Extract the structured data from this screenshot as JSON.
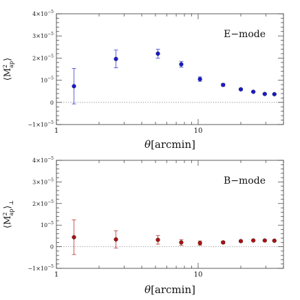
{
  "chart_data": [
    {
      "type": "scatter",
      "panel_label": "E−mode",
      "ylabel": {
        "prefix": "⟨M",
        "sup": "2",
        "sub": "ap",
        "suffix": "⟩",
        "extra": ""
      },
      "xlabel": {
        "theta": "θ",
        "unit": "[arcmin]"
      },
      "xscale": "log",
      "xlim": [
        1,
        40
      ],
      "ylim": [
        -1e-05,
        4e-05
      ],
      "yticks": [
        {
          "value": -1e-05,
          "mant": "−1×10",
          "exp": "−5"
        },
        {
          "value": 0,
          "mant": "0",
          "exp": ""
        },
        {
          "value": 1e-05,
          "mant": "10",
          "exp": "−5"
        },
        {
          "value": 2e-05,
          "mant": "2×10",
          "exp": "−5"
        },
        {
          "value": 3e-05,
          "mant": "3×10",
          "exp": "−5"
        },
        {
          "value": 4e-05,
          "mant": "4×10",
          "exp": "−5"
        }
      ],
      "xticks": [
        {
          "value": 1,
          "label": "1"
        },
        {
          "value": 10,
          "label": "10"
        }
      ],
      "zero_line": true,
      "color": "#1a1acc",
      "points": [
        {
          "x": 1.33,
          "y": 7.3e-06,
          "err": 8e-06
        },
        {
          "x": 2.63,
          "y": 1.96e-05,
          "err": 4e-06
        },
        {
          "x": 5.2,
          "y": 2.2e-05,
          "err": 2e-06
        },
        {
          "x": 7.6,
          "y": 1.72e-05,
          "err": 1.3e-06
        },
        {
          "x": 10.3,
          "y": 1.05e-05,
          "err": 1e-06
        },
        {
          "x": 15.0,
          "y": 7.9e-06,
          "err": 6e-07
        },
        {
          "x": 20.0,
          "y": 5.9e-06,
          "err": 4e-07
        },
        {
          "x": 24.5,
          "y": 4.8e-06,
          "err": 3e-07
        },
        {
          "x": 29.5,
          "y": 3.8e-06,
          "err": 3e-07
        },
        {
          "x": 34.5,
          "y": 3.7e-06,
          "err": 3e-07
        }
      ]
    },
    {
      "type": "scatter",
      "panel_label": "B−mode",
      "ylabel": {
        "prefix": "⟨M",
        "sup": "2",
        "sub": "ap",
        "suffix": "⟩",
        "extra": "⊥"
      },
      "xlabel": {
        "theta": "θ",
        "unit": "[arcmin]"
      },
      "xscale": "log",
      "xlim": [
        1,
        40
      ],
      "ylim": [
        -1e-05,
        4e-05
      ],
      "yticks": [
        {
          "value": -1e-05,
          "mant": "−1×10",
          "exp": "−5"
        },
        {
          "value": 0,
          "mant": "0",
          "exp": ""
        },
        {
          "value": 1e-05,
          "mant": "10",
          "exp": "−5"
        },
        {
          "value": 2e-05,
          "mant": "2×10",
          "exp": "−5"
        },
        {
          "value": 3e-05,
          "mant": "3×10",
          "exp": "−5"
        },
        {
          "value": 4e-05,
          "mant": "4×10",
          "exp": "−5"
        }
      ],
      "xticks": [
        {
          "value": 1,
          "label": "1"
        },
        {
          "value": 10,
          "label": "10"
        }
      ],
      "zero_line": true,
      "color": "#aa1111",
      "points": [
        {
          "x": 1.33,
          "y": 4.4e-06,
          "err": 8e-06
        },
        {
          "x": 2.63,
          "y": 3.4e-06,
          "err": 4e-06
        },
        {
          "x": 5.2,
          "y": 3.2e-06,
          "err": 2e-06
        },
        {
          "x": 7.6,
          "y": 2e-06,
          "err": 1.3e-06
        },
        {
          "x": 10.3,
          "y": 1.7e-06,
          "err": 1e-06
        },
        {
          "x": 15.0,
          "y": 2e-06,
          "err": 6e-07
        },
        {
          "x": 20.0,
          "y": 2.6e-06,
          "err": 4e-07
        },
        {
          "x": 24.5,
          "y": 2.9e-06,
          "err": 3e-07
        },
        {
          "x": 29.5,
          "y": 2.9e-06,
          "err": 3e-07
        },
        {
          "x": 34.5,
          "y": 2.8e-06,
          "err": 3e-07
        }
      ]
    }
  ]
}
